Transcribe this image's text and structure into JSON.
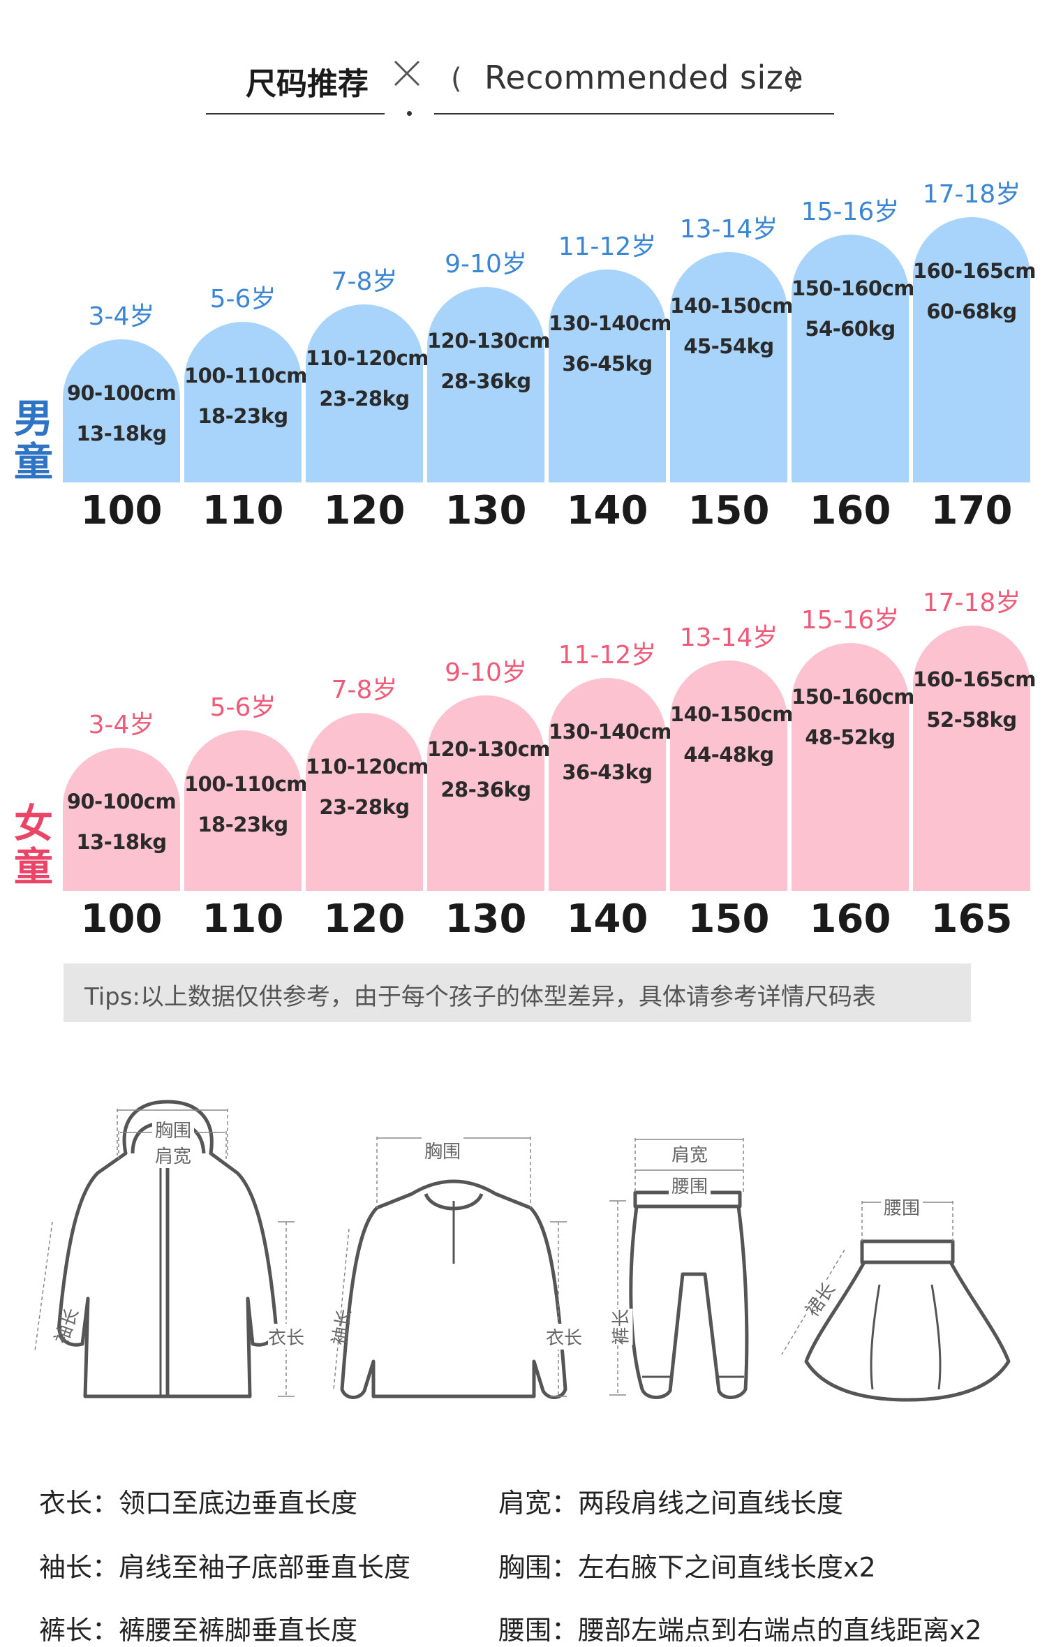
{
  "header": {
    "title_cn": "尺码推荐",
    "open_paren": "(",
    "title_en": "Recommended size",
    "close_paren": ")"
  },
  "boys": {
    "category": "男童",
    "items": [
      {
        "age": "3-4岁",
        "height": "90-100cm",
        "weight": "13-18kg",
        "size": "100"
      },
      {
        "age": "5-6岁",
        "height": "100-110cm",
        "weight": "18-23kg",
        "size": "110"
      },
      {
        "age": "7-8岁",
        "height": "110-120cm",
        "weight": "23-28kg",
        "size": "120"
      },
      {
        "age": "9-10岁",
        "height": "120-130cm",
        "weight": "28-36kg",
        "size": "130"
      },
      {
        "age": "11-12岁",
        "height": "130-140cm",
        "weight": "36-45kg",
        "size": "140"
      },
      {
        "age": "13-14岁",
        "height": "140-150cm",
        "weight": "45-54kg",
        "size": "150"
      },
      {
        "age": "15-16岁",
        "height": "150-160cm",
        "weight": "54-60kg",
        "size": "160"
      },
      {
        "age": "17-18岁",
        "height": "160-165cm",
        "weight": "60-68kg",
        "size": "170"
      }
    ]
  },
  "girls": {
    "category": "女童",
    "items": [
      {
        "age": "3-4岁",
        "height": "90-100cm",
        "weight": "13-18kg",
        "size": "100"
      },
      {
        "age": "5-6岁",
        "height": "100-110cm",
        "weight": "18-23kg",
        "size": "110"
      },
      {
        "age": "7-8岁",
        "height": "110-120cm",
        "weight": "23-28kg",
        "size": "120"
      },
      {
        "age": "9-10岁",
        "height": "120-130cm",
        "weight": "28-36kg",
        "size": "130"
      },
      {
        "age": "11-12岁",
        "height": "130-140cm",
        "weight": "36-43kg",
        "size": "140"
      },
      {
        "age": "13-14岁",
        "height": "140-150cm",
        "weight": "44-48kg",
        "size": "150"
      },
      {
        "age": "15-16岁",
        "height": "150-160cm",
        "weight": "48-52kg",
        "size": "160"
      },
      {
        "age": "17-18岁",
        "height": "160-165cm",
        "weight": "52-58kg",
        "size": "165"
      }
    ]
  },
  "tips": "Tips:以上数据仅供参考，由于每个孩子的体型差异，具体请参考详情尺码表",
  "illustrations": {
    "jacket": {
      "chest": "胸围",
      "shoulder": "肩宽",
      "sleeve": "袖长",
      "length": "衣长"
    },
    "sweater": {
      "chest": "胸围",
      "sleeve": "袖长",
      "length": "衣长"
    },
    "pants": {
      "shoulder": "肩宽",
      "waist": "腰围",
      "length": "裤长"
    },
    "skirt": {
      "waist": "腰围",
      "length": "裙长"
    }
  },
  "definitions": [
    {
      "term": "衣长：",
      "desc": "领口至底边垂直长度"
    },
    {
      "term": "肩宽：",
      "desc": "两段肩线之间直线长度"
    },
    {
      "term": "袖长：",
      "desc": "肩线至袖子底部垂直长度"
    },
    {
      "term": "胸围：",
      "desc": "左右腋下之间直线长度x2"
    },
    {
      "term": "裤长：",
      "desc": "裤腰至裤脚垂直长度"
    },
    {
      "term": "腰围：",
      "desc": "腰部左端点到右端点的直线距离x2"
    }
  ],
  "colors": {
    "boy_arch": "#a8d4fb",
    "boy_text": "#3a86d4",
    "girl_arch": "#fcc2cf",
    "girl_text": "#ef5a78",
    "tips_bg": "#e6e6e6"
  }
}
